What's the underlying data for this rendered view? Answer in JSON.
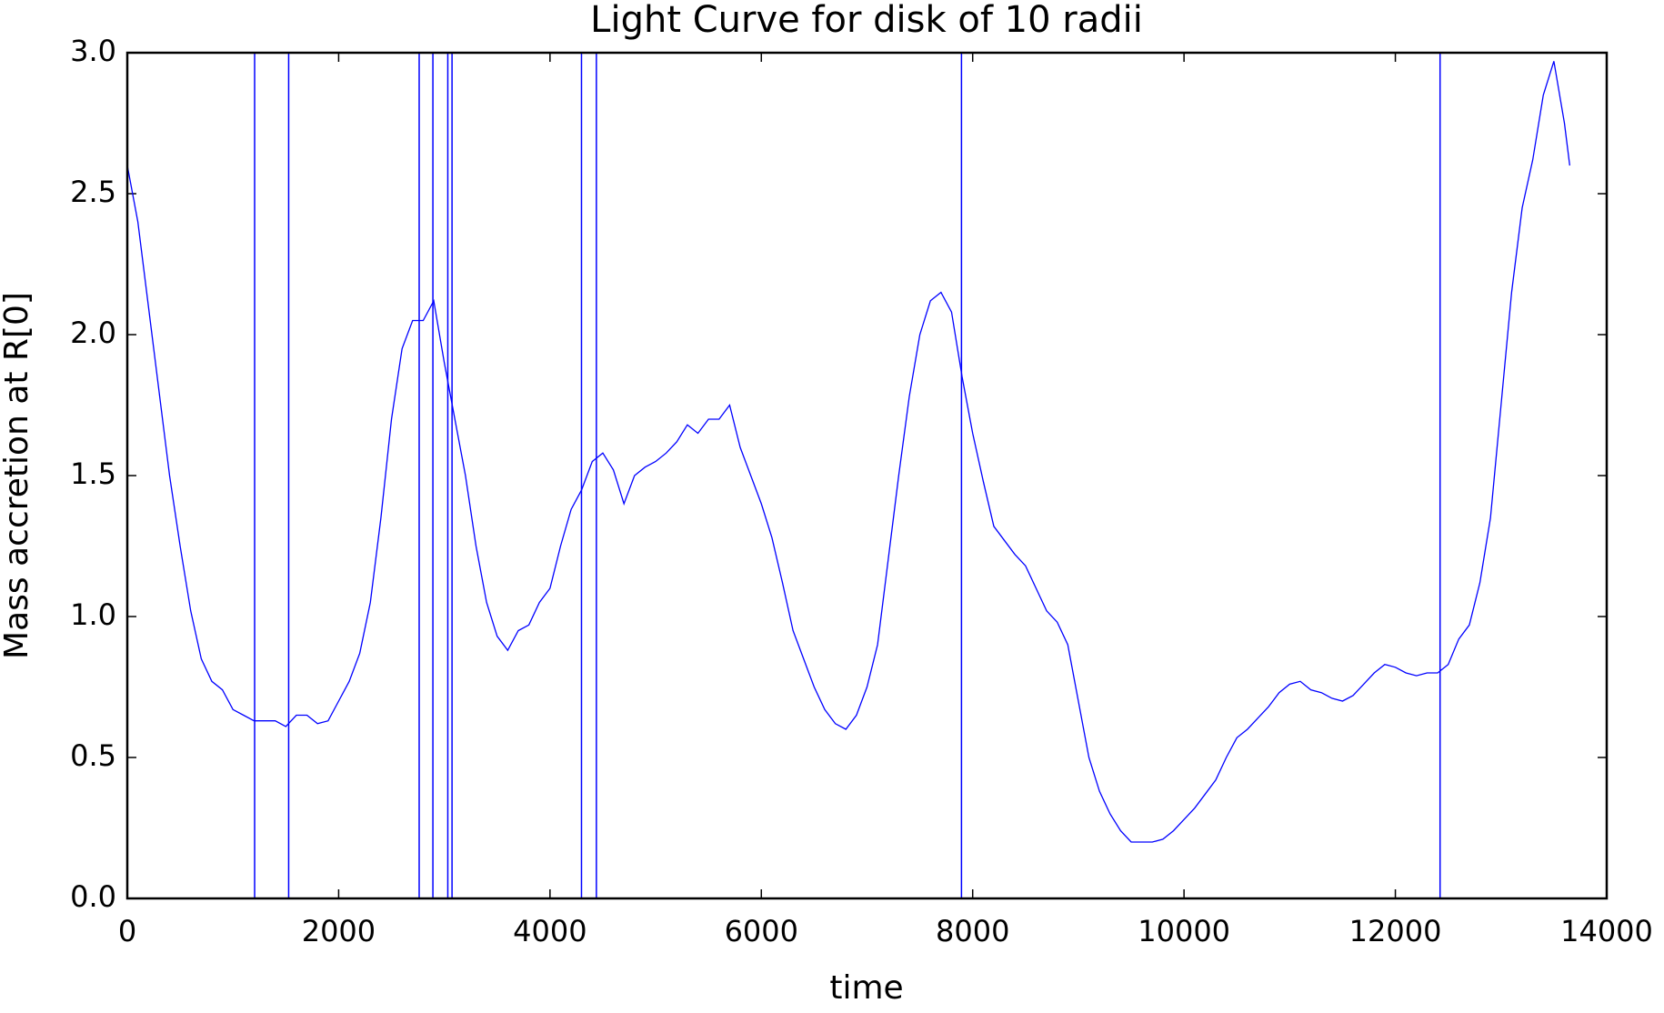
{
  "chart_data": {
    "type": "line",
    "title": "Light Curve for disk of 10 radii",
    "xlabel": "time",
    "ylabel": "Mass accretion at R[0]",
    "xlim": [
      0,
      14000
    ],
    "ylim": [
      0,
      3
    ],
    "xticks": [
      0,
      2000,
      4000,
      6000,
      8000,
      10000,
      12000,
      14000
    ],
    "yticks": [
      {
        "value": 0,
        "label": "0.0"
      },
      {
        "value": 0.5,
        "label": "0.5"
      },
      {
        "value": 1,
        "label": "1.0"
      },
      {
        "value": 1.5,
        "label": "1.5"
      },
      {
        "value": 2,
        "label": "2.0"
      },
      {
        "value": 2.5,
        "label": "2.5"
      },
      {
        "value": 3,
        "label": "3.0"
      }
    ],
    "vlines": [
      1205,
      1527,
      2762,
      2892,
      3033,
      3073,
      4298,
      4439,
      7894,
      12423
    ],
    "vline_color": "#0000ff",
    "x": [
      0,
      100,
      200,
      300,
      400,
      500,
      600,
      700,
      800,
      900,
      1000,
      1100,
      1200,
      1300,
      1400,
      1500,
      1600,
      1700,
      1800,
      1900,
      2000,
      2100,
      2200,
      2300,
      2400,
      2500,
      2600,
      2700,
      2800,
      2900,
      3000,
      3100,
      3200,
      3300,
      3400,
      3500,
      3600,
      3700,
      3800,
      3900,
      4000,
      4100,
      4200,
      4300,
      4400,
      4500,
      4600,
      4700,
      4800,
      4900,
      5000,
      5100,
      5200,
      5300,
      5400,
      5500,
      5600,
      5700,
      5800,
      5900,
      6000,
      6100,
      6200,
      6300,
      6400,
      6500,
      6600,
      6700,
      6800,
      6900,
      7000,
      7100,
      7200,
      7300,
      7400,
      7500,
      7600,
      7700,
      7800,
      7900,
      8000,
      8100,
      8200,
      8300,
      8400,
      8500,
      8600,
      8700,
      8800,
      8900,
      9000,
      9100,
      9200,
      9300,
      9400,
      9500,
      9600,
      9700,
      9800,
      9900,
      10000,
      10100,
      10200,
      10300,
      10400,
      10500,
      10600,
      10700,
      10800,
      10900,
      11000,
      11100,
      11200,
      11300,
      11400,
      11500,
      11600,
      11700,
      11800,
      11900,
      12000,
      12100,
      12200,
      12300,
      12400,
      12500,
      12600,
      12700,
      12800,
      12900,
      13000,
      13100,
      13200,
      13300,
      13400,
      13500,
      13600,
      13650
    ],
    "series": [
      {
        "color": "#0000ff",
        "values": [
          2.6,
          2.4,
          2.1,
          1.8,
          1.5,
          1.25,
          1.02,
          0.85,
          0.77,
          0.74,
          0.67,
          0.65,
          0.63,
          0.63,
          0.63,
          0.61,
          0.65,
          0.65,
          0.62,
          0.63,
          0.7,
          0.77,
          0.87,
          1.05,
          1.35,
          1.7,
          1.95,
          2.05,
          2.05,
          2.12,
          1.9,
          1.7,
          1.5,
          1.25,
          1.05,
          0.93,
          0.88,
          0.95,
          0.97,
          1.05,
          1.1,
          1.25,
          1.38,
          1.45,
          1.55,
          1.58,
          1.52,
          1.4,
          1.5,
          1.53,
          1.55,
          1.58,
          1.62,
          1.68,
          1.65,
          1.7,
          1.7,
          1.75,
          1.6,
          1.5,
          1.4,
          1.28,
          1.12,
          0.95,
          0.85,
          0.75,
          0.67,
          0.62,
          0.6,
          0.65,
          0.75,
          0.9,
          1.2,
          1.5,
          1.78,
          2.0,
          2.12,
          2.15,
          2.08,
          1.85,
          1.65,
          1.48,
          1.32,
          1.27,
          1.22,
          1.18,
          1.1,
          1.02,
          0.98,
          0.9,
          0.7,
          0.5,
          0.38,
          0.3,
          0.24,
          0.2,
          0.2,
          0.2,
          0.21,
          0.24,
          0.28,
          0.32,
          0.37,
          0.42,
          0.5,
          0.57,
          0.6,
          0.64,
          0.68,
          0.73,
          0.76,
          0.77,
          0.74,
          0.73,
          0.71,
          0.7,
          0.72,
          0.76,
          0.8,
          0.83,
          0.82,
          0.8,
          0.79,
          0.8,
          0.8,
          0.83,
          0.92,
          0.97,
          1.12,
          1.35,
          1.75,
          2.15,
          2.45,
          2.62,
          2.85,
          2.97,
          2.75,
          2.6
        ]
      }
    ]
  }
}
